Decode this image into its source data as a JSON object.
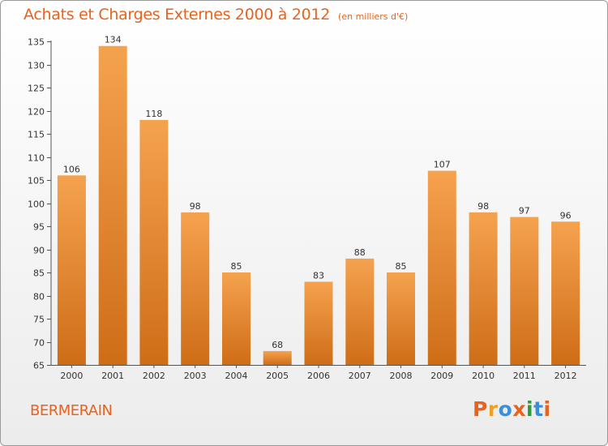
{
  "header": {
    "title": "Achats et Charges Externes 2000 à 2012",
    "subtitle": "(en milliers d'€)"
  },
  "footer": {
    "town": "BERMERAIN",
    "logo": "Proxiti"
  },
  "colors": {
    "accent": "#e8631e",
    "bar_top": "#f5a24f",
    "bar_bottom": "#cf6d17",
    "logo_letters": [
      "#e8631e",
      "#f0a020",
      "#3a8fd8",
      "#e8631e",
      "#2e9a3a",
      "#3a8fd8",
      "#e8631e"
    ]
  },
  "chart_data": {
    "type": "bar",
    "title": "Achats et Charges Externes 2000 à 2012",
    "subtitle": "(en milliers d'€)",
    "categories": [
      "2000",
      "2001",
      "2002",
      "2003",
      "2004",
      "2005",
      "2006",
      "2007",
      "2008",
      "2009",
      "2010",
      "2011",
      "2012"
    ],
    "values": [
      106,
      134,
      118,
      98,
      85,
      68,
      83,
      88,
      85,
      107,
      98,
      97,
      96
    ],
    "ylim": [
      65,
      135
    ],
    "yticks": [
      65,
      70,
      75,
      80,
      85,
      90,
      95,
      100,
      105,
      110,
      115,
      120,
      125,
      130,
      135
    ],
    "grid": false
  }
}
